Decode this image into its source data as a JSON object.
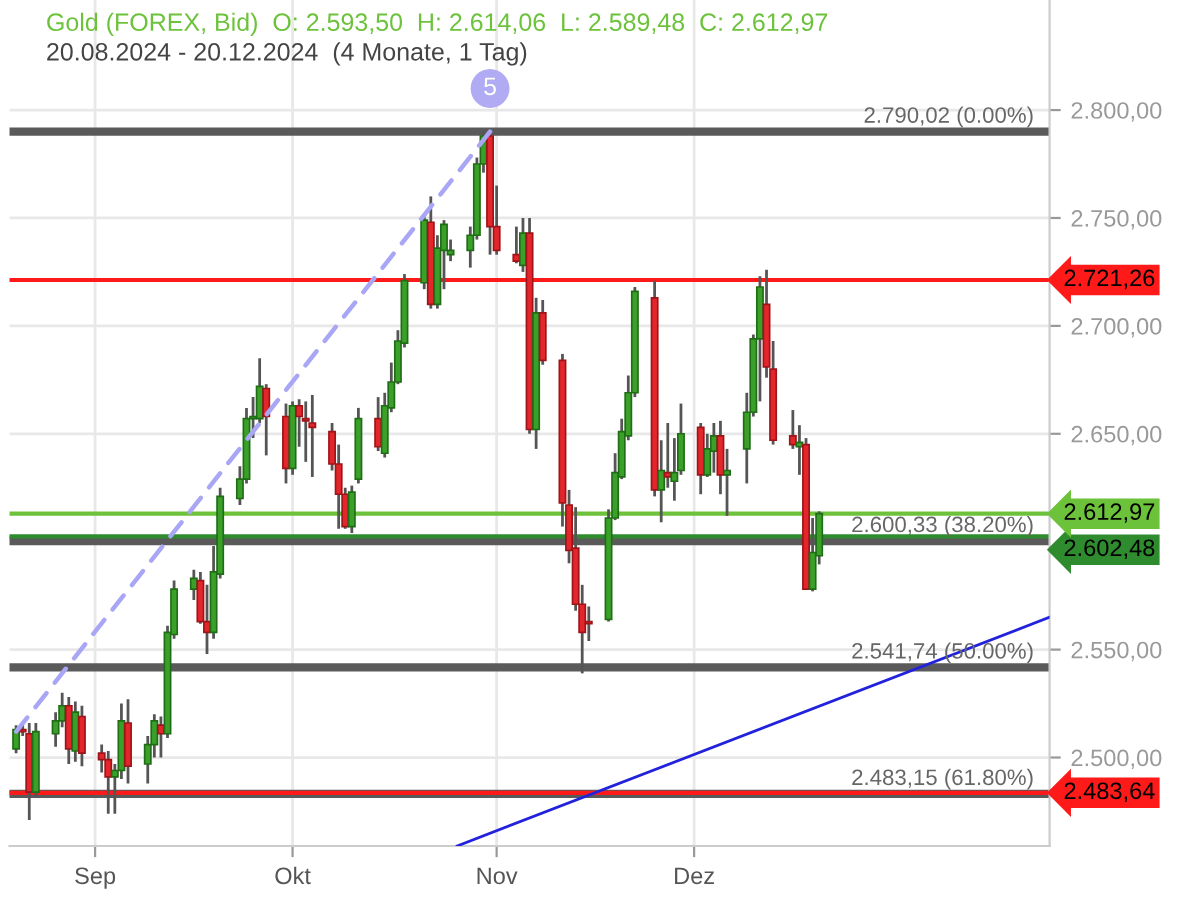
{
  "chart_data": {
    "type": "candlestick",
    "title": "Gold (FOREX, Bid)  O: 2.593,50  H: 2.614,06  L: 2.589,48  C: 2.612,97",
    "subtitle": "20.08.2024 - 20.12.2024  (4 Monate, 1 Tag)",
    "x": [
      "2024-08-20",
      "2024-08-21",
      "2024-08-22",
      "2024-08-23",
      "2024-08-26",
      "2024-08-27",
      "2024-08-28",
      "2024-08-29",
      "2024-08-30",
      "2024-09-02",
      "2024-09-03",
      "2024-09-04",
      "2024-09-05",
      "2024-09-06",
      "2024-09-09",
      "2024-09-10",
      "2024-09-11",
      "2024-09-12",
      "2024-09-13",
      "2024-09-16",
      "2024-09-17",
      "2024-09-18",
      "2024-09-19",
      "2024-09-20",
      "2024-09-23",
      "2024-09-24",
      "2024-09-25",
      "2024-09-26",
      "2024-09-27",
      "2024-09-30",
      "2024-10-01",
      "2024-10-02",
      "2024-10-03",
      "2024-10-04",
      "2024-10-07",
      "2024-10-08",
      "2024-10-09",
      "2024-10-10",
      "2024-10-11",
      "2024-10-14",
      "2024-10-15",
      "2024-10-16",
      "2024-10-17",
      "2024-10-18",
      "2024-10-21",
      "2024-10-22",
      "2024-10-23",
      "2024-10-24",
      "2024-10-25",
      "2024-10-28",
      "2024-10-29",
      "2024-10-30",
      "2024-10-31",
      "2024-11-01",
      "2024-11-04",
      "2024-11-05",
      "2024-11-06",
      "2024-11-07",
      "2024-11-08",
      "2024-11-11",
      "2024-11-12",
      "2024-11-13",
      "2024-11-14",
      "2024-11-15",
      "2024-11-18",
      "2024-11-19",
      "2024-11-20",
      "2024-11-21",
      "2024-11-22",
      "2024-11-25",
      "2024-11-26",
      "2024-11-27",
      "2024-11-28",
      "2024-11-29",
      "2024-12-02",
      "2024-12-03",
      "2024-12-04",
      "2024-12-05",
      "2024-12-06",
      "2024-12-09",
      "2024-12-10",
      "2024-12-11",
      "2024-12-12",
      "2024-12-13",
      "2024-12-16",
      "2024-12-17",
      "2024-12-18",
      "2024-12-19",
      "2024-12-20"
    ],
    "ohlc": [
      [
        2504,
        2515,
        2502,
        2513
      ],
      [
        2513,
        2516,
        2510,
        2512
      ],
      [
        2511,
        2516,
        2471,
        2484
      ],
      [
        2484,
        2516,
        2482,
        2512
      ],
      [
        2511,
        2521,
        2505,
        2517
      ],
      [
        2517,
        2530,
        2514,
        2524
      ],
      [
        2524,
        2528,
        2497,
        2504
      ],
      [
        2503,
        2526,
        2498,
        2521
      ],
      [
        2519,
        2524,
        2496,
        2502
      ],
      [
        2502,
        2506,
        2493,
        2499
      ],
      [
        2499,
        2503,
        2474,
        2491
      ],
      [
        2491,
        2497,
        2474,
        2494
      ],
      [
        2494,
        2525,
        2490,
        2517
      ],
      [
        2516,
        2527,
        2488,
        2496
      ],
      [
        2497,
        2510,
        2488,
        2506
      ],
      [
        2506,
        2520,
        2500,
        2517
      ],
      [
        2515,
        2519,
        2500,
        2511
      ],
      [
        2511,
        2561,
        2509,
        2558
      ],
      [
        2557,
        2582,
        2555,
        2578
      ],
      [
        2578,
        2587,
        2573,
        2583
      ],
      [
        2582,
        2586,
        2562,
        2563
      ],
      [
        2563,
        2580,
        2548,
        2558
      ],
      [
        2558,
        2598,
        2555,
        2586
      ],
      [
        2585,
        2625,
        2583,
        2621
      ],
      [
        2620,
        2635,
        2617,
        2629
      ],
      [
        2629,
        2662,
        2627,
        2657
      ],
      [
        2657,
        2667,
        2648,
        2658
      ],
      [
        2657,
        2685,
        2655,
        2672
      ],
      [
        2671,
        2673,
        2640,
        2658
      ],
      [
        2658,
        2664,
        2627,
        2634
      ],
      [
        2634,
        2665,
        2631,
        2663
      ],
      [
        2663,
        2666,
        2644,
        2658
      ],
      [
        2657,
        2665,
        2637,
        2656
      ],
      [
        2655,
        2668,
        2630,
        2653
      ],
      [
        2651,
        2655,
        2633,
        2636
      ],
      [
        2636,
        2645,
        2606,
        2622
      ],
      [
        2622,
        2625,
        2606,
        2607
      ],
      [
        2607,
        2626,
        2604,
        2623
      ],
      [
        2629,
        2662,
        2627,
        2657
      ],
      [
        2657,
        2667,
        2642,
        2644
      ],
      [
        2641,
        2669,
        2639,
        2663
      ],
      [
        2662,
        2683,
        2660,
        2674
      ],
      [
        2674,
        2698,
        2673,
        2693
      ],
      [
        2692,
        2724,
        2690,
        2721
      ],
      [
        2720,
        2752,
        2717,
        2749
      ],
      [
        2748,
        2760,
        2708,
        2710
      ],
      [
        2710,
        2742,
        2708,
        2736
      ],
      [
        2735,
        2749,
        2717,
        2747
      ],
      [
        2733,
        2740,
        2730,
        2735
      ],
      [
        2735,
        2746,
        2727,
        2742
      ],
      [
        2742,
        2778,
        2740,
        2775
      ],
      [
        2775,
        2790,
        2771,
        2788
      ],
      [
        2788,
        2790,
        2733,
        2746
      ],
      [
        2746,
        2765,
        2733,
        2735
      ],
      [
        2733,
        2746,
        2729,
        2730
      ],
      [
        2728,
        2750,
        2725,
        2743
      ],
      [
        2743,
        2750,
        2650,
        2652
      ],
      [
        2652,
        2713,
        2643,
        2706
      ],
      [
        2706,
        2712,
        2682,
        2684
      ],
      [
        2684,
        2687,
        2607,
        2618
      ],
      [
        2617,
        2624,
        2590,
        2596
      ],
      [
        2597,
        2616,
        2568,
        2571
      ],
      [
        2571,
        2580,
        2539,
        2558
      ],
      [
        2563,
        2570,
        2554,
        2562
      ],
      [
        2564,
        2615,
        2563,
        2611
      ],
      [
        2611,
        2641,
        2610,
        2632
      ],
      [
        2630,
        2657,
        2629,
        2651
      ],
      [
        2649,
        2677,
        2647,
        2669
      ],
      [
        2669,
        2718,
        2667,
        2716
      ],
      [
        2713,
        2721,
        2621,
        2624
      ],
      [
        2624,
        2647,
        2609,
        2633
      ],
      [
        2632,
        2655,
        2625,
        2630
      ],
      [
        2628,
        2648,
        2619,
        2632
      ],
      [
        2633,
        2664,
        2631,
        2650
      ],
      [
        2653,
        2655,
        2622,
        2631
      ],
      [
        2631,
        2650,
        2630,
        2643
      ],
      [
        2642,
        2655,
        2632,
        2649
      ],
      [
        2649,
        2656,
        2622,
        2631
      ],
      [
        2631,
        2643,
        2612,
        2633
      ],
      [
        2643,
        2669,
        2627,
        2660
      ],
      [
        2660,
        2696,
        2658,
        2694
      ],
      [
        2694,
        2723,
        2665,
        2718
      ],
      [
        2710,
        2726,
        2676,
        2681
      ],
      [
        2680,
        2693,
        2645,
        2647
      ],
      [
        2649,
        2661,
        2643,
        2645
      ],
      [
        2644,
        2654,
        2631,
        2646
      ],
      [
        2645,
        2648,
        2578,
        2578
      ],
      [
        2578,
        2611,
        2577,
        2595
      ],
      [
        2593.5,
        2614.06,
        2589.48,
        2612.97
      ]
    ],
    "series": [
      {
        "type": "line",
        "color": "#a9a6f5",
        "line_style": "dashed",
        "x": [
          "2024-08-20",
          "2024-10-31"
        ],
        "values": [
          2512,
          2790
        ]
      },
      {
        "type": "line",
        "color": "#2222dd",
        "line_style": "solid",
        "x": [
          "2024-10-26",
          "2025-01-24"
        ],
        "values": [
          2459,
          2565
        ]
      }
    ],
    "annotations": [
      {
        "text": "5",
        "x": "2024-10-31",
        "y": 2810
      }
    ],
    "ref_lines": [
      {
        "axis": "y",
        "value": 2790.02,
        "label": "2.790,02 (0.00%)"
      },
      {
        "axis": "y",
        "value": 2600.33,
        "label": "2.600,33 (38.20%)"
      },
      {
        "axis": "y",
        "value": 2541.74,
        "label": "2.541,74 (50.00%)"
      },
      {
        "axis": "y",
        "value": 2483.15,
        "label": "2.483,15 (61.80%)"
      },
      {
        "axis": "y",
        "value": 2721.26,
        "label": "2.721,26",
        "color": "#ff1a1a"
      },
      {
        "axis": "y",
        "value": 2602.48,
        "label": "2.602,48",
        "color": "#2e8b2e"
      },
      {
        "axis": "y",
        "value": 2612.97,
        "label": "2.612,97",
        "color": "#6cc23a"
      },
      {
        "axis": "y",
        "value": 2483.64,
        "label": "2.483,64",
        "color": "#ff1a1a"
      }
    ],
    "xlim": [
      "2024-08-19",
      "2025-01-24"
    ],
    "xticks": [
      {
        "value": "2024-09-01",
        "label": "Sep"
      },
      {
        "value": "2024-10-01",
        "label": "Okt"
      },
      {
        "value": "2024-11-01",
        "label": "Nov"
      },
      {
        "value": "2024-12-01",
        "label": "Dez"
      }
    ],
    "ylim": [
      2459,
      2851
    ],
    "yticks": [
      {
        "value": 2500,
        "label": "2.500,00"
      },
      {
        "value": 2550,
        "label": "2.550,00"
      },
      {
        "value": 2650,
        "label": "2.650,00"
      },
      {
        "value": 2700,
        "label": "2.700,00"
      },
      {
        "value": 2750,
        "label": "2.750,00"
      },
      {
        "value": 2800,
        "label": "2.800,00"
      }
    ],
    "grid": true,
    "legend": false
  }
}
